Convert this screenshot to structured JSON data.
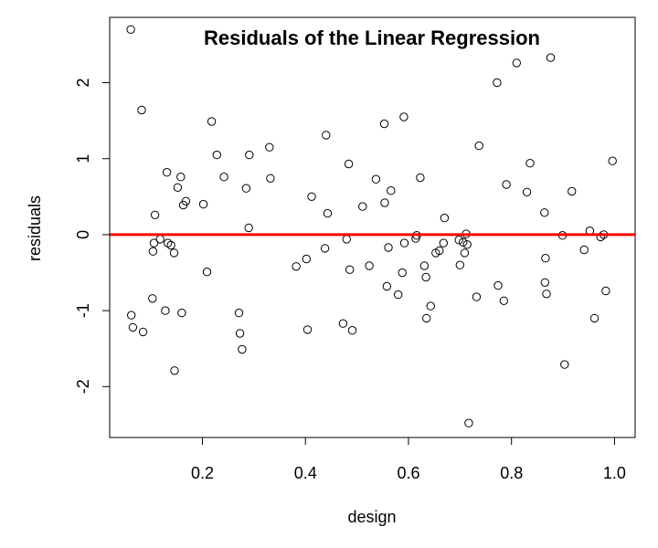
{
  "chart_data": {
    "type": "scatter",
    "title": "Residuals of the Linear Regression",
    "xlabel": "design",
    "ylabel": "residuals",
    "xlim": [
      0.02,
      1.04
    ],
    "ylim": [
      -2.67,
      2.86
    ],
    "xticks": [
      0.2,
      0.4,
      0.6,
      0.8,
      1.0
    ],
    "xtick_labels": [
      "0.2",
      "0.4",
      "0.6",
      "0.8",
      "1.0"
    ],
    "yticks": [
      -2,
      -1,
      0,
      1,
      2
    ],
    "ytick_labels": [
      "-2",
      "-1",
      "0",
      "1",
      "2"
    ],
    "reference_line": {
      "y": 0,
      "color": "#ff0000"
    },
    "point_color": "#000000",
    "grid": false,
    "points": [
      [
        0.061,
        2.7
      ],
      [
        0.082,
        1.64
      ],
      [
        0.062,
        -1.06
      ],
      [
        0.065,
        -1.22
      ],
      [
        0.085,
        -1.28
      ],
      [
        0.103,
        -0.84
      ],
      [
        0.104,
        -0.22
      ],
      [
        0.106,
        -0.11
      ],
      [
        0.108,
        0.26
      ],
      [
        0.118,
        -0.06
      ],
      [
        0.128,
        -1.0
      ],
      [
        0.131,
        0.82
      ],
      [
        0.133,
        -0.11
      ],
      [
        0.139,
        -0.14
      ],
      [
        0.145,
        -0.24
      ],
      [
        0.146,
        -1.79
      ],
      [
        0.152,
        0.62
      ],
      [
        0.158,
        0.76
      ],
      [
        0.16,
        -1.03
      ],
      [
        0.163,
        0.39
      ],
      [
        0.168,
        0.44
      ],
      [
        0.202,
        0.4
      ],
      [
        0.209,
        -0.49
      ],
      [
        0.218,
        1.49
      ],
      [
        0.228,
        1.05
      ],
      [
        0.242,
        0.76
      ],
      [
        0.271,
        -1.03
      ],
      [
        0.273,
        -1.3
      ],
      [
        0.277,
        -1.51
      ],
      [
        0.285,
        0.61
      ],
      [
        0.29,
        0.09
      ],
      [
        0.291,
        1.05
      ],
      [
        0.33,
        1.15
      ],
      [
        0.332,
        0.74
      ],
      [
        0.382,
        -0.42
      ],
      [
        0.402,
        -0.32
      ],
      [
        0.404,
        -1.25
      ],
      [
        0.412,
        0.5
      ],
      [
        0.438,
        -0.18
      ],
      [
        0.44,
        1.31
      ],
      [
        0.443,
        0.28
      ],
      [
        0.473,
        -1.17
      ],
      [
        0.48,
        -0.06
      ],
      [
        0.484,
        0.93
      ],
      [
        0.486,
        -0.46
      ],
      [
        0.491,
        -1.26
      ],
      [
        0.511,
        0.37
      ],
      [
        0.524,
        -0.41
      ],
      [
        0.537,
        0.73
      ],
      [
        0.553,
        1.46
      ],
      [
        0.554,
        0.42
      ],
      [
        0.558,
        -0.68
      ],
      [
        0.561,
        -0.17
      ],
      [
        0.566,
        0.58
      ],
      [
        0.58,
        -0.79
      ],
      [
        0.588,
        -0.5
      ],
      [
        0.591,
        1.55
      ],
      [
        0.592,
        -0.11
      ],
      [
        0.614,
        -0.05
      ],
      [
        0.616,
        -0.01
      ],
      [
        0.623,
        0.75
      ],
      [
        0.631,
        -0.41
      ],
      [
        0.634,
        -0.56
      ],
      [
        0.635,
        -1.1
      ],
      [
        0.643,
        -0.94
      ],
      [
        0.653,
        -0.24
      ],
      [
        0.66,
        -0.21
      ],
      [
        0.668,
        -0.11
      ],
      [
        0.67,
        0.22
      ],
      [
        0.698,
        -0.07
      ],
      [
        0.7,
        -0.4
      ],
      [
        0.706,
        -0.1
      ],
      [
        0.709,
        -0.24
      ],
      [
        0.712,
        0.01
      ],
      [
        0.714,
        -0.13
      ],
      [
        0.717,
        -2.48
      ],
      [
        0.732,
        -0.82
      ],
      [
        0.737,
        1.17
      ],
      [
        0.772,
        2.0
      ],
      [
        0.774,
        -0.67
      ],
      [
        0.785,
        -0.87
      ],
      [
        0.79,
        0.66
      ],
      [
        0.81,
        2.26
      ],
      [
        0.83,
        0.56
      ],
      [
        0.836,
        0.94
      ],
      [
        0.864,
        0.29
      ],
      [
        0.865,
        -0.63
      ],
      [
        0.866,
        -0.31
      ],
      [
        0.868,
        -0.78
      ],
      [
        0.876,
        2.33
      ],
      [
        0.899,
        -0.01
      ],
      [
        0.903,
        -1.71
      ],
      [
        0.917,
        0.57
      ],
      [
        0.941,
        -0.2
      ],
      [
        0.952,
        0.05
      ],
      [
        0.961,
        -1.1
      ],
      [
        0.973,
        -0.03
      ],
      [
        0.979,
        0.0
      ],
      [
        0.983,
        -0.74
      ],
      [
        0.996,
        0.97
      ]
    ]
  }
}
